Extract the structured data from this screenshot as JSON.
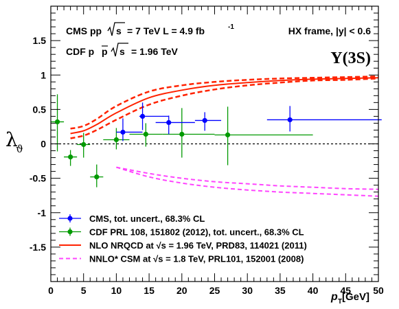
{
  "chart_data": {
    "type": "scatter",
    "xlim": [
      0,
      50
    ],
    "ylim": [
      -2,
      2
    ],
    "xlabel": {
      "main": "p",
      "sub": "T",
      "unit": " [GeV]"
    },
    "ylabel": {
      "main": "λ",
      "sub": "ϑ"
    },
    "x_ticks": [
      0,
      5,
      10,
      15,
      20,
      25,
      30,
      35,
      40,
      45,
      50
    ],
    "y_ticks": [
      -1.5,
      -1,
      -0.5,
      0,
      0.5,
      1,
      1.5
    ],
    "x_tick_labels": [
      "0",
      "5",
      "10",
      "15",
      "20",
      "25",
      "30",
      "35",
      "40",
      "45",
      "50"
    ],
    "y_tick_labels": [
      "-1.5",
      "-1",
      "-0.5",
      "0",
      "0.5",
      "1",
      "1.5"
    ],
    "zero_line": 0,
    "annotations": {
      "experiment": "CMS  pp",
      "cms_energy": "= 7 TeV  L = 4.9 fb",
      "lumi_exp": "-1",
      "cdf_label": "CDF  p",
      "cdf_pbar": "p",
      "cdf_energy": "= 1.96 TeV",
      "frame": "HX frame, |y| < 0.6",
      "state": "Υ(3S)"
    },
    "series": [
      {
        "name": "CMS, tot. uncert., 68.3% CL",
        "color": "#0000ff",
        "kind": "points",
        "points": [
          {
            "x": 11.0,
            "xerr": [
              1.0,
              3.0
            ],
            "y": 0.17,
            "yerr": [
              0.13,
              0.2
            ]
          },
          {
            "x": 14.0,
            "xerr": [
              0.5,
              4.0
            ],
            "y": 0.4,
            "yerr": [
              0.2,
              0.2
            ]
          },
          {
            "x": 18.0,
            "xerr": [
              2.0,
              4.0
            ],
            "y": 0.31,
            "yerr": [
              0.17,
              0.1
            ]
          },
          {
            "x": 23.5,
            "xerr": [
              1.5,
              2.5
            ],
            "y": 0.34,
            "yerr": [
              0.15,
              0.12
            ]
          },
          {
            "x": 36.5,
            "xerr": [
              3.5,
              14.0
            ],
            "y": 0.35,
            "yerr": [
              0.17,
              0.2
            ]
          }
        ]
      },
      {
        "name": "CDF PRL 108, 151802 (2012), tot. uncert., 68.3% CL",
        "color": "#009900",
        "kind": "points",
        "points": [
          {
            "x": 1.0,
            "xerr": [
              1.0,
              1.0
            ],
            "y": 0.32,
            "yerr": [
              0.43,
              0.4
            ]
          },
          {
            "x": 3.0,
            "xerr": [
              1.0,
              1.0
            ],
            "y": -0.19,
            "yerr": [
              0.13,
              0.1
            ]
          },
          {
            "x": 5.0,
            "xerr": [
              1.0,
              1.0
            ],
            "y": -0.01,
            "yerr": [
              0.19,
              0.17
            ]
          },
          {
            "x": 7.0,
            "xerr": [
              1.0,
              1.0
            ],
            "y": -0.48,
            "yerr": [
              0.15,
              0.18
            ]
          },
          {
            "x": 10.0,
            "xerr": [
              2.0,
              2.0
            ],
            "y": 0.06,
            "yerr": [
              0.14,
              0.17
            ]
          },
          {
            "x": 14.5,
            "xerr": [
              2.5,
              2.5
            ],
            "y": 0.14,
            "yerr": [
              0.18,
              0.16
            ]
          },
          {
            "x": 20.0,
            "xerr": [
              3.0,
              5.0
            ],
            "y": 0.14,
            "yerr": [
              0.34,
              0.38
            ]
          },
          {
            "x": 27.0,
            "xerr": [
              2.0,
              13.0
            ],
            "y": 0.13,
            "yerr": [
              0.44,
              0.41
            ]
          }
        ]
      },
      {
        "name": "NLO NRQCD at √s = 1.96 TeV,  PRD83, 114021 (2011)",
        "color": "#ff2200",
        "kind": "band",
        "x": [
          3,
          5,
          7,
          10,
          15,
          20,
          25,
          30,
          35,
          40,
          45,
          50
        ],
        "center": [
          0.15,
          0.19,
          0.28,
          0.45,
          0.67,
          0.78,
          0.85,
          0.89,
          0.92,
          0.94,
          0.95,
          0.96
        ],
        "upper": [
          0.22,
          0.26,
          0.36,
          0.55,
          0.76,
          0.85,
          0.9,
          0.93,
          0.95,
          0.96,
          0.97,
          0.98
        ],
        "lower": [
          0.08,
          0.12,
          0.2,
          0.35,
          0.57,
          0.7,
          0.79,
          0.85,
          0.89,
          0.92,
          0.93,
          0.95
        ]
      },
      {
        "name": "NNLO* CSM at √s = 1.8 TeV, PRL101, 152001 (2008)",
        "color": "#ff44ff",
        "kind": "dashed-pair",
        "x": [
          10,
          15,
          20,
          25,
          30,
          35,
          40,
          45,
          50
        ],
        "upper": [
          -0.34,
          -0.43,
          -0.5,
          -0.55,
          -0.58,
          -0.61,
          -0.63,
          -0.65,
          -0.66
        ],
        "lower": [
          -0.34,
          -0.48,
          -0.57,
          -0.63,
          -0.67,
          -0.7,
          -0.72,
          -0.74,
          -0.76
        ]
      }
    ],
    "legend": {
      "position": "bottom-left",
      "entries": [
        "CMS, tot. uncert., 68.3% CL",
        "CDF PRL 108, 151802 (2012), tot. uncert., 68.3% CL",
        "NLO NRQCD at √s = 1.96 TeV,  PRD83, 114021 (2011)",
        "NNLO* CSM at √s = 1.8 TeV, PRL101, 152001 (2008)"
      ]
    }
  }
}
